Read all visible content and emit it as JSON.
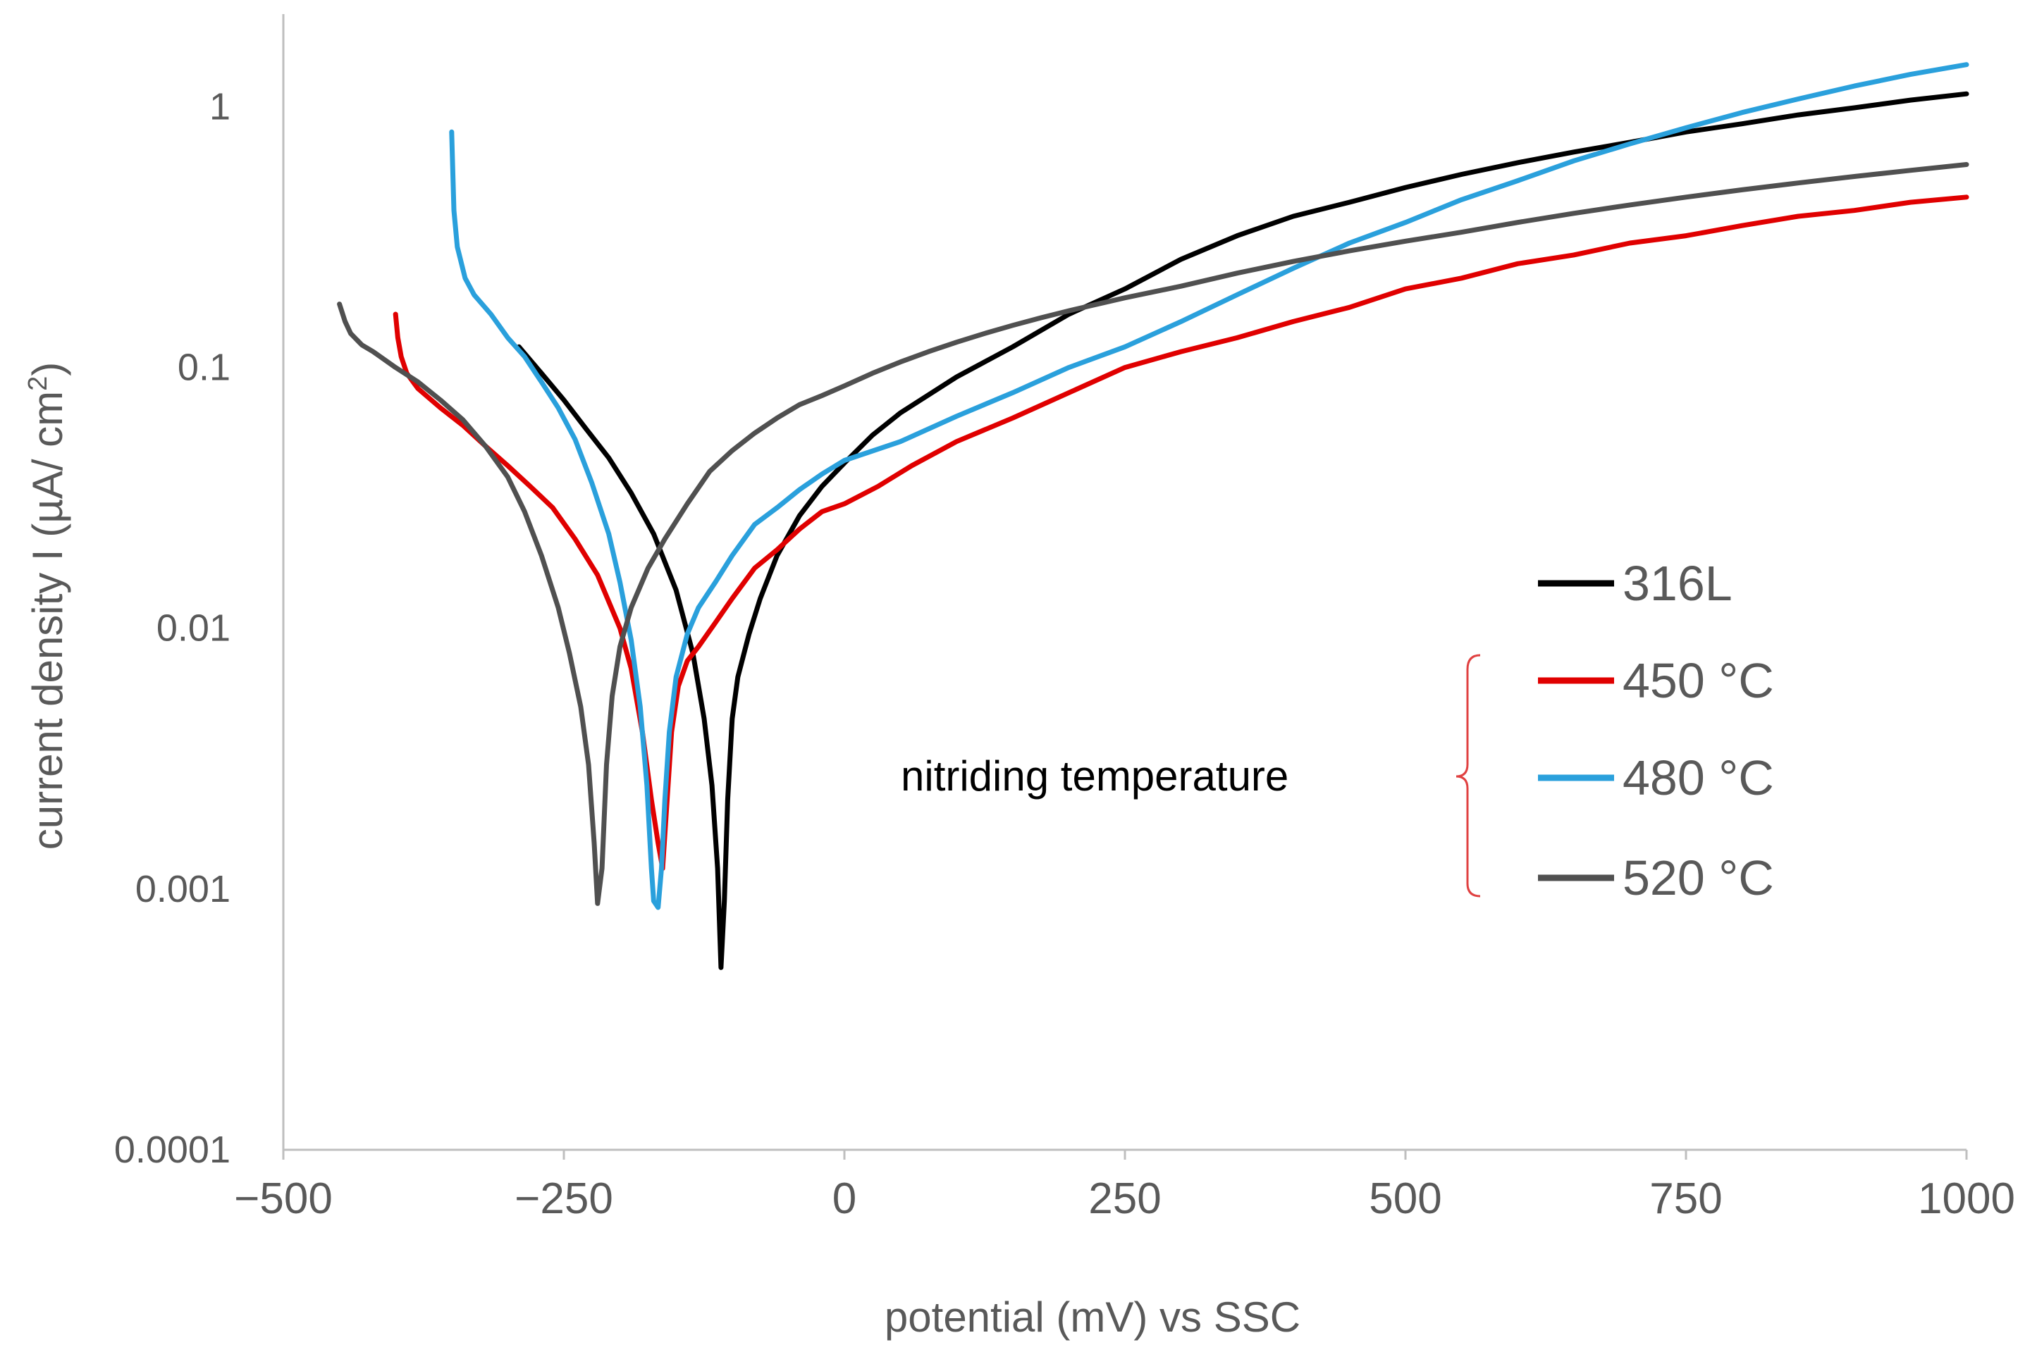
{
  "chart_data": {
    "type": "line",
    "title": "",
    "xlabel": "potential (mV) vs SSC",
    "ylabel_main": "current density I (µA/ cm",
    "ylabel_sup": "2",
    "ylabel_end": ")",
    "xscale": "linear",
    "yscale": "log",
    "xlim": [
      -500,
      1000
    ],
    "ylim": [
      0.0001,
      2
    ],
    "xticks": [
      -500,
      -250,
      0,
      250,
      500,
      750,
      1000
    ],
    "xtick_labels": [
      "−500",
      "−250",
      "0",
      "250",
      "500",
      "750",
      "1000"
    ],
    "yticks": [
      1,
      0.1,
      0.01,
      0.001,
      0.0001
    ],
    "ytick_labels": [
      "1",
      "0.1",
      "0.01",
      "0.001",
      "0.0001"
    ],
    "grid": false,
    "legend_position": "right",
    "annotation": {
      "text": "nitriding temperature",
      "bracket_color": "#e04040",
      "brackets_series": [
        "450 °C",
        "480 °C",
        "520 °C"
      ]
    },
    "series": [
      {
        "name": "316L",
        "color": "#000000",
        "points": [
          [
            -290,
            0.12
          ],
          [
            -270,
            0.095
          ],
          [
            -250,
            0.075
          ],
          [
            -230,
            0.058
          ],
          [
            -210,
            0.045
          ],
          [
            -190,
            0.033
          ],
          [
            -170,
            0.023
          ],
          [
            -150,
            0.014
          ],
          [
            -135,
            0.008
          ],
          [
            -125,
            0.0045
          ],
          [
            -118,
            0.0025
          ],
          [
            -113,
            0.0012
          ],
          [
            -110,
            0.0005
          ],
          [
            -107,
            0.0009
          ],
          [
            -104,
            0.0022
          ],
          [
            -100,
            0.0045
          ],
          [
            -95,
            0.0065
          ],
          [
            -85,
            0.0095
          ],
          [
            -75,
            0.013
          ],
          [
            -60,
            0.019
          ],
          [
            -40,
            0.027
          ],
          [
            -20,
            0.035
          ],
          [
            0,
            0.043
          ],
          [
            25,
            0.055
          ],
          [
            50,
            0.067
          ],
          [
            100,
            0.092
          ],
          [
            150,
            0.12
          ],
          [
            200,
            0.16
          ],
          [
            250,
            0.2
          ],
          [
            300,
            0.26
          ],
          [
            350,
            0.32
          ],
          [
            400,
            0.38
          ],
          [
            450,
            0.43
          ],
          [
            500,
            0.49
          ],
          [
            550,
            0.55
          ],
          [
            600,
            0.61
          ],
          [
            650,
            0.67
          ],
          [
            700,
            0.73
          ],
          [
            750,
            0.8
          ],
          [
            800,
            0.86
          ],
          [
            850,
            0.93
          ],
          [
            900,
            0.99
          ],
          [
            950,
            1.06
          ],
          [
            1000,
            1.12
          ]
        ]
      },
      {
        "name": "450 °C",
        "color": "#e00000",
        "points": [
          [
            -400,
            0.16
          ],
          [
            -398,
            0.13
          ],
          [
            -395,
            0.11
          ],
          [
            -390,
            0.095
          ],
          [
            -380,
            0.083
          ],
          [
            -360,
            0.07
          ],
          [
            -340,
            0.06
          ],
          [
            -320,
            0.05
          ],
          [
            -300,
            0.042
          ],
          [
            -280,
            0.035
          ],
          [
            -260,
            0.029
          ],
          [
            -240,
            0.022
          ],
          [
            -220,
            0.016
          ],
          [
            -200,
            0.01
          ],
          [
            -190,
            0.007
          ],
          [
            -180,
            0.004
          ],
          [
            -172,
            0.0022
          ],
          [
            -166,
            0.0015
          ],
          [
            -162,
            0.0012
          ],
          [
            -158,
            0.0022
          ],
          [
            -154,
            0.004
          ],
          [
            -148,
            0.006
          ],
          [
            -140,
            0.0075
          ],
          [
            -130,
            0.0085
          ],
          [
            -115,
            0.0105
          ],
          [
            -100,
            0.013
          ],
          [
            -80,
            0.017
          ],
          [
            -60,
            0.02
          ],
          [
            -40,
            0.024
          ],
          [
            -20,
            0.028
          ],
          [
            0,
            0.03
          ],
          [
            30,
            0.035
          ],
          [
            60,
            0.042
          ],
          [
            100,
            0.052
          ],
          [
            150,
            0.064
          ],
          [
            200,
            0.08
          ],
          [
            250,
            0.1
          ],
          [
            300,
            0.115
          ],
          [
            350,
            0.13
          ],
          [
            400,
            0.15
          ],
          [
            450,
            0.17
          ],
          [
            500,
            0.2
          ],
          [
            550,
            0.22
          ],
          [
            600,
            0.25
          ],
          [
            650,
            0.27
          ],
          [
            700,
            0.3
          ],
          [
            750,
            0.32
          ],
          [
            800,
            0.35
          ],
          [
            850,
            0.38
          ],
          [
            900,
            0.4
          ],
          [
            950,
            0.43
          ],
          [
            1000,
            0.45
          ]
        ]
      },
      {
        "name": "480 °C",
        "color": "#2aa0dc",
        "points": [
          [
            -350,
            0.8
          ],
          [
            -348,
            0.4
          ],
          [
            -345,
            0.29
          ],
          [
            -338,
            0.22
          ],
          [
            -330,
            0.19
          ],
          [
            -315,
            0.16
          ],
          [
            -300,
            0.13
          ],
          [
            -285,
            0.11
          ],
          [
            -270,
            0.088
          ],
          [
            -255,
            0.07
          ],
          [
            -240,
            0.053
          ],
          [
            -225,
            0.036
          ],
          [
            -210,
            0.023
          ],
          [
            -200,
            0.015
          ],
          [
            -190,
            0.009
          ],
          [
            -182,
            0.005
          ],
          [
            -176,
            0.0025
          ],
          [
            -172,
            0.0012
          ],
          [
            -170,
            0.0009
          ],
          [
            -166,
            0.00085
          ],
          [
            -163,
            0.0012
          ],
          [
            -160,
            0.0022
          ],
          [
            -156,
            0.004
          ],
          [
            -150,
            0.0065
          ],
          [
            -140,
            0.0095
          ],
          [
            -130,
            0.012
          ],
          [
            -115,
            0.015
          ],
          [
            -100,
            0.019
          ],
          [
            -80,
            0.025
          ],
          [
            -60,
            0.029
          ],
          [
            -40,
            0.034
          ],
          [
            -20,
            0.039
          ],
          [
            0,
            0.044
          ],
          [
            50,
            0.052
          ],
          [
            100,
            0.065
          ],
          [
            150,
            0.08
          ],
          [
            200,
            0.1
          ],
          [
            250,
            0.12
          ],
          [
            300,
            0.15
          ],
          [
            350,
            0.19
          ],
          [
            400,
            0.24
          ],
          [
            450,
            0.3
          ],
          [
            500,
            0.36
          ],
          [
            550,
            0.44
          ],
          [
            600,
            0.52
          ],
          [
            650,
            0.62
          ],
          [
            700,
            0.72
          ],
          [
            750,
            0.83
          ],
          [
            800,
            0.95
          ],
          [
            850,
            1.07
          ],
          [
            900,
            1.2
          ],
          [
            950,
            1.33
          ],
          [
            1000,
            1.45
          ]
        ]
      },
      {
        "name": "520 °C",
        "color": "#505050",
        "points": [
          [
            -450,
            0.175
          ],
          [
            -445,
            0.15
          ],
          [
            -440,
            0.135
          ],
          [
            -430,
            0.122
          ],
          [
            -420,
            0.115
          ],
          [
            -400,
            0.1
          ],
          [
            -380,
            0.088
          ],
          [
            -360,
            0.075
          ],
          [
            -340,
            0.063
          ],
          [
            -320,
            0.05
          ],
          [
            -300,
            0.038
          ],
          [
            -285,
            0.028
          ],
          [
            -270,
            0.019
          ],
          [
            -255,
            0.012
          ],
          [
            -245,
            0.008
          ],
          [
            -235,
            0.005
          ],
          [
            -228,
            0.003
          ],
          [
            -223,
            0.0015
          ],
          [
            -220,
            0.00088
          ],
          [
            -216,
            0.0012
          ],
          [
            -212,
            0.003
          ],
          [
            -207,
            0.0055
          ],
          [
            -200,
            0.0085
          ],
          [
            -190,
            0.012
          ],
          [
            -175,
            0.017
          ],
          [
            -160,
            0.022
          ],
          [
            -140,
            0.03
          ],
          [
            -120,
            0.04
          ],
          [
            -100,
            0.048
          ],
          [
            -80,
            0.056
          ],
          [
            -60,
            0.064
          ],
          [
            -40,
            0.072
          ],
          [
            -20,
            0.078
          ],
          [
            0,
            0.085
          ],
          [
            25,
            0.095
          ],
          [
            50,
            0.105
          ],
          [
            75,
            0.115
          ],
          [
            100,
            0.125
          ],
          [
            125,
            0.135
          ],
          [
            150,
            0.145
          ],
          [
            175,
            0.155
          ],
          [
            200,
            0.165
          ],
          [
            250,
            0.185
          ],
          [
            300,
            0.205
          ],
          [
            350,
            0.23
          ],
          [
            400,
            0.255
          ],
          [
            450,
            0.28
          ],
          [
            500,
            0.305
          ],
          [
            550,
            0.33
          ],
          [
            600,
            0.36
          ],
          [
            650,
            0.39
          ],
          [
            700,
            0.42
          ],
          [
            750,
            0.45
          ],
          [
            800,
            0.48
          ],
          [
            850,
            0.51
          ],
          [
            900,
            0.54
          ],
          [
            950,
            0.57
          ],
          [
            1000,
            0.6
          ]
        ]
      }
    ]
  }
}
